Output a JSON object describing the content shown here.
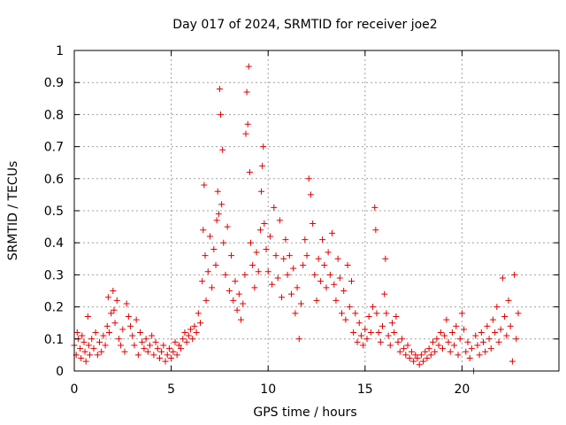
{
  "chart_data": {
    "type": "scatter",
    "title": "Day 017 of 2024, SRMTID for receiver joe2",
    "xlabel": "GPS time / hours",
    "ylabel": "SRMTID / TECUs",
    "xlim": [
      0,
      25
    ],
    "ylim": [
      0,
      1
    ],
    "xticks": [
      0,
      5,
      10,
      15,
      20
    ],
    "xtick_labels": [
      "0",
      "5",
      "10",
      "15",
      "20"
    ],
    "yticks": [
      0,
      0.1,
      0.2,
      0.3,
      0.4,
      0.5,
      0.6,
      0.7,
      0.8,
      0.9,
      1
    ],
    "ytick_labels": [
      "0",
      "0.1",
      "0.2",
      "0.3",
      "0.4",
      "0.5",
      "0.6",
      "0.7",
      "0.8",
      "0.9",
      "1"
    ],
    "grid": true,
    "marker": "+",
    "color": "#e00000",
    "series": [
      {
        "name": "SRMTID",
        "points": [
          [
            0.0,
            0.08
          ],
          [
            0.1,
            0.05
          ],
          [
            0.15,
            0.12
          ],
          [
            0.2,
            0.1
          ],
          [
            0.3,
            0.07
          ],
          [
            0.35,
            0.04
          ],
          [
            0.4,
            0.11
          ],
          [
            0.5,
            0.09
          ],
          [
            0.55,
            0.06
          ],
          [
            0.6,
            0.03
          ],
          [
            0.7,
            0.17
          ],
          [
            0.75,
            0.08
          ],
          [
            0.8,
            0.05
          ],
          [
            0.9,
            0.1
          ],
          [
            1.0,
            0.07
          ],
          [
            1.1,
            0.12
          ],
          [
            1.2,
            0.05
          ],
          [
            1.3,
            0.09
          ],
          [
            1.4,
            0.06
          ],
          [
            1.5,
            0.11
          ],
          [
            1.6,
            0.08
          ],
          [
            1.7,
            0.14
          ],
          [
            1.75,
            0.23
          ],
          [
            1.8,
            0.12
          ],
          [
            1.9,
            0.18
          ],
          [
            2.0,
            0.25
          ],
          [
            2.05,
            0.19
          ],
          [
            2.1,
            0.15
          ],
          [
            2.2,
            0.22
          ],
          [
            2.3,
            0.1
          ],
          [
            2.4,
            0.08
          ],
          [
            2.5,
            0.13
          ],
          [
            2.6,
            0.06
          ],
          [
            2.7,
            0.21
          ],
          [
            2.8,
            0.17
          ],
          [
            2.9,
            0.14
          ],
          [
            3.0,
            0.11
          ],
          [
            3.1,
            0.08
          ],
          [
            3.2,
            0.16
          ],
          [
            3.3,
            0.05
          ],
          [
            3.4,
            0.12
          ],
          [
            3.5,
            0.09
          ],
          [
            3.6,
            0.07
          ],
          [
            3.7,
            0.1
          ],
          [
            3.8,
            0.06
          ],
          [
            3.9,
            0.08
          ],
          [
            4.0,
            0.11
          ],
          [
            4.1,
            0.05
          ],
          [
            4.2,
            0.09
          ],
          [
            4.3,
            0.07
          ],
          [
            4.4,
            0.04
          ],
          [
            4.5,
            0.06
          ],
          [
            4.6,
            0.08
          ],
          [
            4.7,
            0.03
          ],
          [
            4.8,
            0.05
          ],
          [
            4.9,
            0.07
          ],
          [
            5.0,
            0.04
          ],
          [
            5.1,
            0.06
          ],
          [
            5.2,
            0.09
          ],
          [
            5.3,
            0.05
          ],
          [
            5.4,
            0.08
          ],
          [
            5.5,
            0.07
          ],
          [
            5.6,
            0.1
          ],
          [
            5.7,
            0.12
          ],
          [
            5.8,
            0.09
          ],
          [
            5.9,
            0.11
          ],
          [
            6.0,
            0.13
          ],
          [
            6.1,
            0.1
          ],
          [
            6.2,
            0.14
          ],
          [
            6.3,
            0.12
          ],
          [
            6.4,
            0.18
          ],
          [
            6.5,
            0.15
          ],
          [
            6.6,
            0.28
          ],
          [
            6.65,
            0.44
          ],
          [
            6.7,
            0.58
          ],
          [
            6.75,
            0.36
          ],
          [
            6.8,
            0.22
          ],
          [
            6.9,
            0.31
          ],
          [
            7.0,
            0.42
          ],
          [
            7.1,
            0.26
          ],
          [
            7.2,
            0.38
          ],
          [
            7.3,
            0.33
          ],
          [
            7.35,
            0.47
          ],
          [
            7.4,
            0.56
          ],
          [
            7.45,
            0.49
          ],
          [
            7.5,
            0.88
          ],
          [
            7.55,
            0.8
          ],
          [
            7.6,
            0.52
          ],
          [
            7.65,
            0.69
          ],
          [
            7.7,
            0.4
          ],
          [
            7.8,
            0.3
          ],
          [
            7.9,
            0.45
          ],
          [
            8.0,
            0.25
          ],
          [
            8.1,
            0.36
          ],
          [
            8.2,
            0.22
          ],
          [
            8.3,
            0.28
          ],
          [
            8.4,
            0.19
          ],
          [
            8.5,
            0.24
          ],
          [
            8.6,
            0.16
          ],
          [
            8.7,
            0.21
          ],
          [
            8.8,
            0.3
          ],
          [
            8.85,
            0.74
          ],
          [
            8.9,
            0.87
          ],
          [
            8.95,
            0.77
          ],
          [
            9.0,
            0.95
          ],
          [
            9.05,
            0.62
          ],
          [
            9.1,
            0.4
          ],
          [
            9.2,
            0.33
          ],
          [
            9.3,
            0.26
          ],
          [
            9.4,
            0.37
          ],
          [
            9.5,
            0.31
          ],
          [
            9.6,
            0.44
          ],
          [
            9.65,
            0.56
          ],
          [
            9.7,
            0.64
          ],
          [
            9.75,
            0.7
          ],
          [
            9.8,
            0.46
          ],
          [
            9.9,
            0.38
          ],
          [
            10.0,
            0.31
          ],
          [
            10.1,
            0.42
          ],
          [
            10.2,
            0.27
          ],
          [
            10.3,
            0.51
          ],
          [
            10.4,
            0.36
          ],
          [
            10.5,
            0.29
          ],
          [
            10.6,
            0.47
          ],
          [
            10.7,
            0.23
          ],
          [
            10.8,
            0.35
          ],
          [
            10.9,
            0.41
          ],
          [
            11.0,
            0.3
          ],
          [
            11.1,
            0.36
          ],
          [
            11.2,
            0.24
          ],
          [
            11.3,
            0.32
          ],
          [
            11.4,
            0.18
          ],
          [
            11.5,
            0.26
          ],
          [
            11.6,
            0.1
          ],
          [
            11.7,
            0.21
          ],
          [
            11.8,
            0.33
          ],
          [
            11.9,
            0.41
          ],
          [
            12.0,
            0.36
          ],
          [
            12.1,
            0.6
          ],
          [
            12.2,
            0.55
          ],
          [
            12.3,
            0.46
          ],
          [
            12.4,
            0.3
          ],
          [
            12.5,
            0.22
          ],
          [
            12.6,
            0.35
          ],
          [
            12.7,
            0.28
          ],
          [
            12.8,
            0.41
          ],
          [
            12.9,
            0.33
          ],
          [
            13.0,
            0.26
          ],
          [
            13.1,
            0.37
          ],
          [
            13.2,
            0.3
          ],
          [
            13.3,
            0.43
          ],
          [
            13.4,
            0.27
          ],
          [
            13.5,
            0.22
          ],
          [
            13.6,
            0.35
          ],
          [
            13.7,
            0.29
          ],
          [
            13.8,
            0.18
          ],
          [
            13.9,
            0.25
          ],
          [
            14.0,
            0.16
          ],
          [
            14.1,
            0.33
          ],
          [
            14.2,
            0.2
          ],
          [
            14.3,
            0.28
          ],
          [
            14.4,
            0.12
          ],
          [
            14.5,
            0.18
          ],
          [
            14.6,
            0.09
          ],
          [
            14.7,
            0.15
          ],
          [
            14.8,
            0.11
          ],
          [
            14.9,
            0.08
          ],
          [
            15.0,
            0.13
          ],
          [
            15.1,
            0.1
          ],
          [
            15.2,
            0.17
          ],
          [
            15.3,
            0.12
          ],
          [
            15.4,
            0.2
          ],
          [
            15.5,
            0.51
          ],
          [
            15.55,
            0.44
          ],
          [
            15.6,
            0.18
          ],
          [
            15.7,
            0.12
          ],
          [
            15.8,
            0.09
          ],
          [
            15.9,
            0.14
          ],
          [
            16.0,
            0.24
          ],
          [
            16.05,
            0.35
          ],
          [
            16.1,
            0.18
          ],
          [
            16.2,
            0.11
          ],
          [
            16.3,
            0.08
          ],
          [
            16.4,
            0.15
          ],
          [
            16.5,
            0.12
          ],
          [
            16.6,
            0.17
          ],
          [
            16.7,
            0.09
          ],
          [
            16.8,
            0.06
          ],
          [
            16.9,
            0.1
          ],
          [
            17.0,
            0.07
          ],
          [
            17.1,
            0.05
          ],
          [
            17.2,
            0.08
          ],
          [
            17.3,
            0.04
          ],
          [
            17.4,
            0.06
          ],
          [
            17.5,
            0.03
          ],
          [
            17.6,
            0.05
          ],
          [
            17.7,
            0.04
          ],
          [
            17.8,
            0.02
          ],
          [
            17.9,
            0.05
          ],
          [
            18.0,
            0.03
          ],
          [
            18.1,
            0.06
          ],
          [
            18.2,
            0.04
          ],
          [
            18.3,
            0.07
          ],
          [
            18.4,
            0.05
          ],
          [
            18.5,
            0.09
          ],
          [
            18.6,
            0.06
          ],
          [
            18.7,
            0.1
          ],
          [
            18.8,
            0.08
          ],
          [
            18.9,
            0.12
          ],
          [
            19.0,
            0.07
          ],
          [
            19.1,
            0.11
          ],
          [
            19.2,
            0.16
          ],
          [
            19.3,
            0.09
          ],
          [
            19.4,
            0.06
          ],
          [
            19.5,
            0.12
          ],
          [
            19.6,
            0.08
          ],
          [
            19.7,
            0.14
          ],
          [
            19.8,
            0.05
          ],
          [
            19.9,
            0.1
          ],
          [
            20.0,
            0.18
          ],
          [
            20.1,
            0.13
          ],
          [
            20.2,
            0.06
          ],
          [
            20.3,
            0.09
          ],
          [
            20.4,
            0.04
          ],
          [
            20.5,
            0.07
          ],
          [
            20.6,
            0.0
          ],
          [
            20.7,
            0.11
          ],
          [
            20.8,
            0.08
          ],
          [
            20.9,
            0.05
          ],
          [
            21.0,
            0.12
          ],
          [
            21.1,
            0.09
          ],
          [
            21.2,
            0.06
          ],
          [
            21.3,
            0.14
          ],
          [
            21.4,
            0.1
          ],
          [
            21.5,
            0.07
          ],
          [
            21.6,
            0.16
          ],
          [
            21.7,
            0.12
          ],
          [
            21.8,
            0.2
          ],
          [
            21.9,
            0.09
          ],
          [
            22.0,
            0.13
          ],
          [
            22.1,
            0.29
          ],
          [
            22.2,
            0.17
          ],
          [
            22.3,
            0.11
          ],
          [
            22.4,
            0.22
          ],
          [
            22.5,
            0.14
          ],
          [
            22.6,
            0.03
          ],
          [
            22.7,
            0.3
          ],
          [
            22.8,
            0.1
          ],
          [
            22.9,
            0.18
          ]
        ]
      }
    ]
  }
}
